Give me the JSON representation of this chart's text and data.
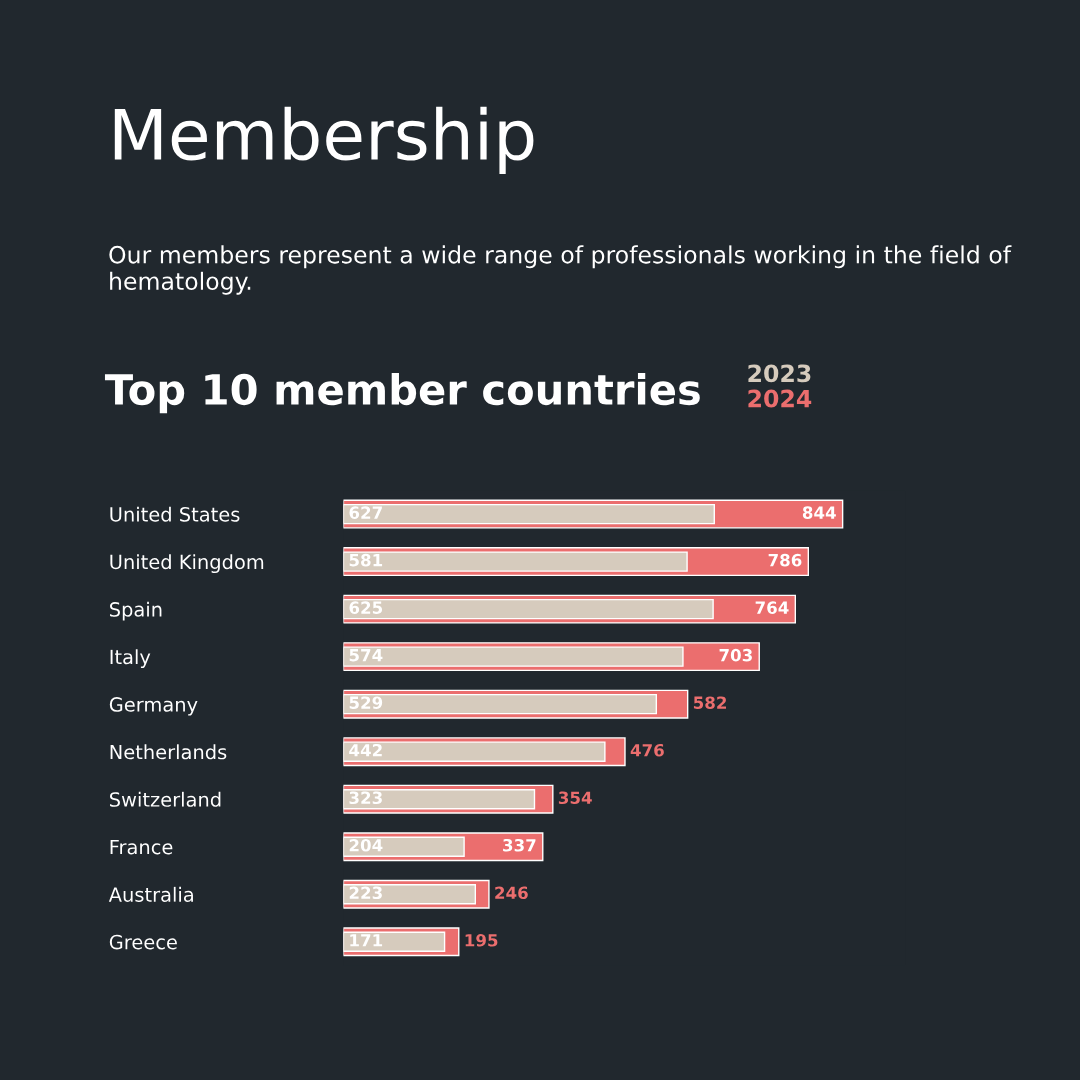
{
  "chart_data": {
    "type": "bar",
    "orientation": "horizontal",
    "title": "Membership",
    "subtitle": "Our members represent a wide range of professionals working in the field of hematology.",
    "annotations": [
      "Top 10 member countries"
    ],
    "categories": [
      "United States",
      "United Kingdom",
      "Spain",
      "Italy",
      "Germany",
      "Netherlands",
      "Switzerland",
      "France",
      "Australia",
      "Greece"
    ],
    "series": [
      {
        "name": "2024",
        "color": "#eb6e6e",
        "values": [
          844,
          786,
          764,
          703,
          582,
          476,
          354,
          337,
          246,
          195
        ]
      },
      {
        "name": "2023",
        "color": "#d6cbbd",
        "values": [
          627,
          581,
          625,
          574,
          529,
          442,
          323,
          204,
          223,
          171
        ]
      }
    ],
    "data_labels": true,
    "legend": "top right",
    "grid": false
  }
}
